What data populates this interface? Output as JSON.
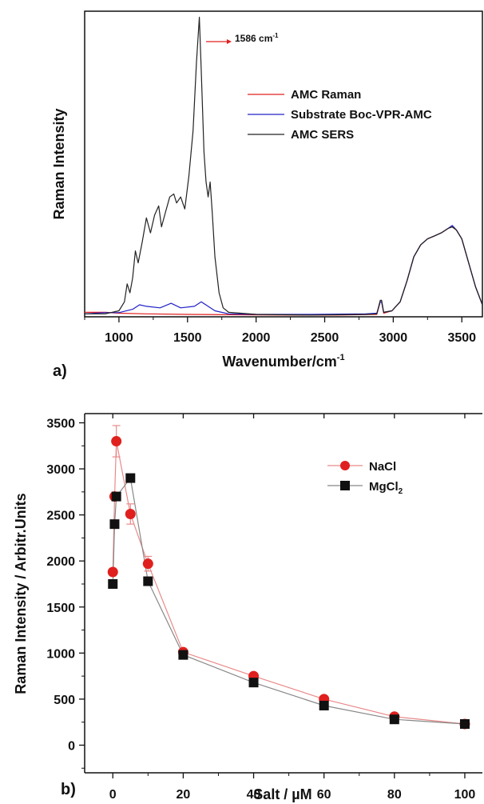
{
  "chart_data": [
    {
      "panel_label": "a)",
      "type": "line",
      "xlabel": "Wavenumber/cm",
      "xlabel_sup": "-1",
      "ylabel": "Raman Intensity",
      "xlim": [
        750,
        3650
      ],
      "ylim": [
        0,
        1.02
      ],
      "x_ticks": [
        1000,
        1500,
        2000,
        2500,
        3000,
        3500
      ],
      "y_ticks_labeled": false,
      "annotation": {
        "text": "1586 cm",
        "sup": "-1",
        "x": 1586,
        "y": 1.0
      },
      "legend_position": "upper-right",
      "series": [
        {
          "name": "AMC Raman",
          "color": "#e02020",
          "points": [
            [
              750,
              0.015
            ],
            [
              900,
              0.015
            ],
            [
              1000,
              0.012
            ],
            [
              1200,
              0.01
            ],
            [
              1500,
              0.008
            ],
            [
              1800,
              0.007
            ],
            [
              2200,
              0.006
            ],
            [
              2600,
              0.006
            ],
            [
              2880,
              0.008
            ],
            [
              2905,
              0.05
            ],
            [
              2915,
              0.05
            ],
            [
              2930,
              0.012
            ],
            [
              2990,
              0.02
            ],
            [
              3050,
              0.05
            ],
            [
              3100,
              0.12
            ],
            [
              3150,
              0.2
            ],
            [
              3200,
              0.24
            ],
            [
              3250,
              0.26
            ],
            [
              3300,
              0.27
            ],
            [
              3350,
              0.28
            ],
            [
              3400,
              0.295
            ],
            [
              3430,
              0.3
            ],
            [
              3460,
              0.29
            ],
            [
              3500,
              0.26
            ],
            [
              3550,
              0.18
            ],
            [
              3600,
              0.1
            ],
            [
              3650,
              0.04
            ]
          ]
        },
        {
          "name": "Substrate Boc-VPR-AMC",
          "color": "#2020c8",
          "points": [
            [
              750,
              0.01
            ],
            [
              900,
              0.014
            ],
            [
              1000,
              0.014
            ],
            [
              1100,
              0.025
            ],
            [
              1150,
              0.04
            ],
            [
              1200,
              0.035
            ],
            [
              1300,
              0.03
            ],
            [
              1380,
              0.045
            ],
            [
              1450,
              0.03
            ],
            [
              1550,
              0.035
            ],
            [
              1600,
              0.05
            ],
            [
              1650,
              0.035
            ],
            [
              1700,
              0.02
            ],
            [
              1800,
              0.01
            ],
            [
              2000,
              0.008
            ],
            [
              2400,
              0.008
            ],
            [
              2800,
              0.01
            ],
            [
              2880,
              0.012
            ],
            [
              2905,
              0.05
            ],
            [
              2915,
              0.05
            ],
            [
              2930,
              0.015
            ],
            [
              2990,
              0.02
            ],
            [
              3050,
              0.05
            ],
            [
              3100,
              0.12
            ],
            [
              3150,
              0.2
            ],
            [
              3200,
              0.24
            ],
            [
              3250,
              0.26
            ],
            [
              3300,
              0.27
            ],
            [
              3350,
              0.28
            ],
            [
              3400,
              0.295
            ],
            [
              3430,
              0.305
            ],
            [
              3460,
              0.29
            ],
            [
              3500,
              0.26
            ],
            [
              3550,
              0.18
            ],
            [
              3600,
              0.1
            ],
            [
              3650,
              0.04
            ]
          ]
        },
        {
          "name": "AMC SERS",
          "color": "#222222",
          "points": [
            [
              750,
              0.01
            ],
            [
              900,
              0.01
            ],
            [
              1000,
              0.02
            ],
            [
              1040,
              0.05
            ],
            [
              1060,
              0.11
            ],
            [
              1080,
              0.08
            ],
            [
              1100,
              0.13
            ],
            [
              1120,
              0.22
            ],
            [
              1140,
              0.18
            ],
            [
              1170,
              0.25
            ],
            [
              1200,
              0.33
            ],
            [
              1230,
              0.28
            ],
            [
              1260,
              0.34
            ],
            [
              1290,
              0.37
            ],
            [
              1310,
              0.3
            ],
            [
              1340,
              0.35
            ],
            [
              1370,
              0.4
            ],
            [
              1400,
              0.41
            ],
            [
              1420,
              0.38
            ],
            [
              1450,
              0.4
            ],
            [
              1480,
              0.36
            ],
            [
              1510,
              0.47
            ],
            [
              1540,
              0.62
            ],
            [
              1565,
              0.85
            ],
            [
              1586,
              1.0
            ],
            [
              1600,
              0.82
            ],
            [
              1620,
              0.55
            ],
            [
              1635,
              0.45
            ],
            [
              1650,
              0.4
            ],
            [
              1665,
              0.45
            ],
            [
              1680,
              0.35
            ],
            [
              1700,
              0.2
            ],
            [
              1730,
              0.08
            ],
            [
              1760,
              0.03
            ],
            [
              1800,
              0.015
            ],
            [
              2000,
              0.008
            ],
            [
              2400,
              0.006
            ],
            [
              2800,
              0.008
            ],
            [
              2880,
              0.01
            ],
            [
              2905,
              0.055
            ],
            [
              2915,
              0.055
            ],
            [
              2930,
              0.015
            ],
            [
              2990,
              0.02
            ],
            [
              3050,
              0.05
            ],
            [
              3100,
              0.12
            ],
            [
              3150,
              0.2
            ],
            [
              3200,
              0.24
            ],
            [
              3250,
              0.26
            ],
            [
              3300,
              0.27
            ],
            [
              3350,
              0.28
            ],
            [
              3400,
              0.295
            ],
            [
              3430,
              0.3
            ],
            [
              3460,
              0.29
            ],
            [
              3500,
              0.26
            ],
            [
              3550,
              0.18
            ],
            [
              3600,
              0.1
            ],
            [
              3650,
              0.04
            ]
          ]
        }
      ]
    },
    {
      "panel_label": "b)",
      "type": "line",
      "xlabel": "Salt / µM",
      "ylabel": "Raman Intensity / Arbitr.Units",
      "xlim": [
        -8,
        105
      ],
      "ylim": [
        -300,
        3600
      ],
      "x_ticks": [
        0,
        20,
        40,
        60,
        80,
        100
      ],
      "y_ticks": [
        0,
        500,
        1000,
        1500,
        2000,
        2500,
        3000,
        3500
      ],
      "legend_position": "upper-right",
      "series": [
        {
          "name": "NaCl",
          "marker": "circle",
          "color": "#e0201e",
          "line_color": "#e88a8a",
          "x": [
            0,
            0.5,
            1,
            5,
            10,
            20,
            40,
            60,
            80,
            100
          ],
          "y": [
            1880,
            2700,
            3300,
            2510,
            1970,
            1010,
            750,
            500,
            310,
            230
          ],
          "err": [
            0,
            0,
            170,
            110,
            80,
            0,
            0,
            0,
            0,
            0
          ]
        },
        {
          "name": "MgCl",
          "name_sub": "2",
          "marker": "square",
          "color": "#111111",
          "line_color": "#888888",
          "x": [
            0,
            0.5,
            1,
            5,
            10,
            20,
            40,
            60,
            80,
            100
          ],
          "y": [
            1750,
            2400,
            2700,
            2900,
            1780,
            980,
            680,
            430,
            280,
            230
          ],
          "err": [
            0,
            0,
            0,
            0,
            0,
            0,
            0,
            0,
            0,
            0
          ]
        }
      ]
    }
  ]
}
